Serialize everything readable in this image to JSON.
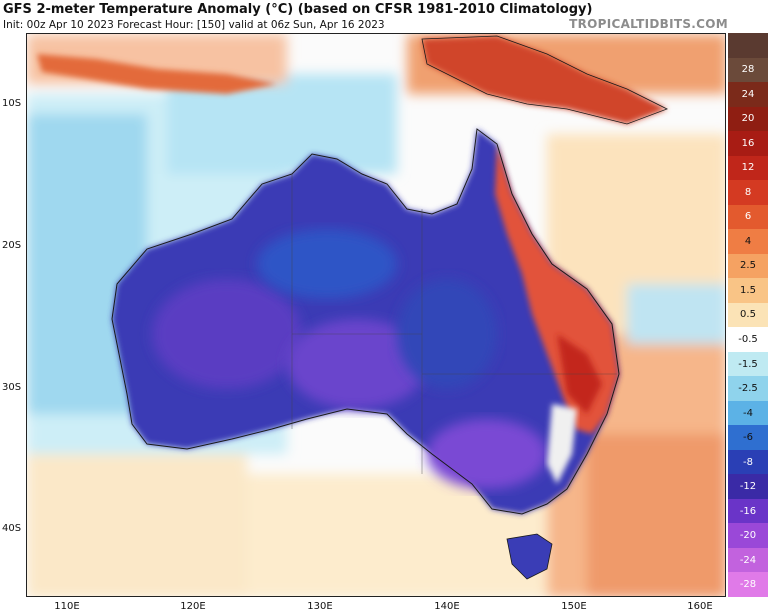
{
  "header": {
    "title": "GFS 2-meter Temperature Anomaly (°C) (based on CFSR 1981-2010 Climatology)",
    "subtitle": "Init: 00z Apr 10 2023   Forecast Hour: [150]   valid at 06z Sun, Apr 16 2023",
    "brand": "TROPICALTIDBITS.COM"
  },
  "axes": {
    "lat_labels": [
      "10S",
      "20S",
      "30S",
      "40S"
    ],
    "lon_labels": [
      "110E",
      "120E",
      "130E",
      "140E",
      "150E",
      "160E"
    ]
  },
  "colorbar": {
    "labels": [
      "28",
      "24",
      "20",
      "16",
      "12",
      "8",
      "6",
      "4",
      "2.5",
      "1.5",
      "0.5",
      "-0.5",
      "-1.5",
      "-2.5",
      "-4",
      "-6",
      "-8",
      "-12",
      "-16",
      "-20",
      "-24",
      "-28"
    ],
    "colors": [
      "#6b4a3a",
      "#7b2a1a",
      "#8f1e12",
      "#a81c14",
      "#c0261a",
      "#d43a22",
      "#e35a2e",
      "#ef7d44",
      "#f5a262",
      "#f9c486",
      "#fbe3b6",
      "#ffffff",
      "#bfeaf2",
      "#8fd3ec",
      "#5cb2e6",
      "#2f6fd0",
      "#2a3fb5",
      "#3a2aa6",
      "#6a34c8",
      "#9a48d8",
      "#c262de",
      "#e07ae8"
    ]
  },
  "colors": {
    "ocean_warm": "#fde6c4",
    "ocean_cool": "#aee0f2",
    "land_cold": "#3d3bb8",
    "land_coldest": "#6a3fc7",
    "coast_warm": "#d9452a"
  }
}
